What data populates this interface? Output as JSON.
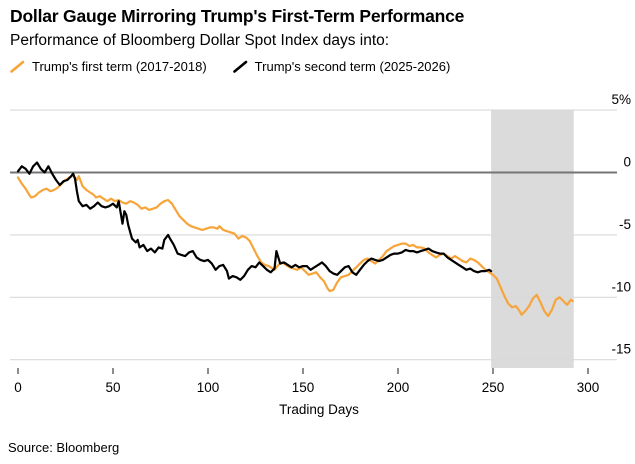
{
  "header": {
    "title": "Dollar Gauge Mirroring Trump's First-Term Performance",
    "subtitle": "Performance of Bloomberg Dollar Spot Index days into:"
  },
  "legend": {
    "items": [
      {
        "label": "Trump's first term (2017-2018)",
        "color": "#F7A43A"
      },
      {
        "label": "Trump's second term (2025-2026)",
        "color": "#000000"
      }
    ]
  },
  "footer": {
    "source": "Source: Bloomberg"
  },
  "colors": {
    "band": "#DBDBDB",
    "grid": "#D9D9D9",
    "zero_line": "#757575",
    "axis_tick": "#4d4d4d",
    "background": "#FFFFFF"
  },
  "chart_data": {
    "type": "line",
    "title": "Dollar Gauge Mirroring Trump's First-Term Performance",
    "subtitle": "Performance of Bloomberg Dollar Spot Index days into:",
    "xlabel": "Trading Days",
    "ylabel": "",
    "y_unit": "%",
    "xlim": [
      0,
      315
    ],
    "ylim": [
      -15,
      5
    ],
    "grid": true,
    "legend_position": "top-left",
    "x_ticks": [
      0,
      50,
      100,
      150,
      200,
      250,
      300
    ],
    "y_ticks": [
      {
        "value": 5,
        "label": "5%"
      },
      {
        "value": 0,
        "label": "0"
      },
      {
        "value": -5,
        "label": "-5"
      },
      {
        "value": -10,
        "label": "-10"
      },
      {
        "value": -15,
        "label": "-15"
      }
    ],
    "shaded_region": {
      "x0": 249,
      "x1": 292.5,
      "note": "highlight band over days ~249-292"
    },
    "series": [
      {
        "name": "Trump's first term (2017-2018)",
        "color": "#F7A43A",
        "points": [
          [
            0,
            -0.4
          ],
          [
            2,
            -0.9
          ],
          [
            4,
            -1.3
          ],
          [
            6,
            -1.8
          ],
          [
            7,
            -2.0
          ],
          [
            9,
            -1.9
          ],
          [
            11,
            -1.6
          ],
          [
            13,
            -1.4
          ],
          [
            15,
            -1.3
          ],
          [
            17,
            -1.5
          ],
          [
            19,
            -1.4
          ],
          [
            21,
            -1.2
          ],
          [
            23,
            -0.9
          ],
          [
            25,
            -0.6
          ],
          [
            27,
            -0.4
          ],
          [
            29,
            -0.2
          ],
          [
            31,
            -0.6
          ],
          [
            32,
            -0.3
          ],
          [
            34,
            -1.1
          ],
          [
            36,
            -1.4
          ],
          [
            38,
            -1.6
          ],
          [
            40,
            -1.8
          ],
          [
            41,
            -2.0
          ],
          [
            43,
            -1.9
          ],
          [
            45,
            -2.1
          ],
          [
            47,
            -2.3
          ],
          [
            49,
            -2.1
          ],
          [
            51,
            -2.3
          ],
          [
            53,
            -2.2
          ],
          [
            55,
            -2.4
          ],
          [
            57,
            -2.5
          ],
          [
            59,
            -2.3
          ],
          [
            61,
            -2.4
          ],
          [
            63,
            -2.6
          ],
          [
            65,
            -2.9
          ],
          [
            67,
            -2.8
          ],
          [
            69,
            -3.0
          ],
          [
            71,
            -2.9
          ],
          [
            73,
            -2.8
          ],
          [
            75,
            -2.5
          ],
          [
            77,
            -2.3
          ],
          [
            79,
            -2.2
          ],
          [
            81,
            -2.5
          ],
          [
            83,
            -3.0
          ],
          [
            85,
            -3.5
          ],
          [
            87,
            -3.8
          ],
          [
            89,
            -4.1
          ],
          [
            91,
            -4.3
          ],
          [
            93,
            -4.4
          ],
          [
            95,
            -4.5
          ],
          [
            97,
            -4.6
          ],
          [
            99,
            -4.5
          ],
          [
            101,
            -4.4
          ],
          [
            103,
            -4.4
          ],
          [
            105,
            -4.5
          ],
          [
            106,
            -4.3
          ],
          [
            108,
            -4.6
          ],
          [
            110,
            -4.7
          ],
          [
            112,
            -4.8
          ],
          [
            114,
            -4.9
          ],
          [
            116,
            -5.3
          ],
          [
            118,
            -5.1
          ],
          [
            120,
            -5.2
          ],
          [
            122,
            -5.5
          ],
          [
            124,
            -6.1
          ],
          [
            126,
            -6.7
          ],
          [
            128,
            -7.2
          ],
          [
            130,
            -7.4
          ],
          [
            132,
            -7.5
          ],
          [
            134,
            -7.7
          ],
          [
            135,
            -7.8
          ],
          [
            137,
            -7.4
          ],
          [
            139,
            -7.2
          ],
          [
            141,
            -7.4
          ],
          [
            143,
            -7.6
          ],
          [
            145,
            -7.7
          ],
          [
            147,
            -7.8
          ],
          [
            149,
            -7.6
          ],
          [
            151,
            -7.9
          ],
          [
            153,
            -8.2
          ],
          [
            155,
            -8.1
          ],
          [
            157,
            -8.0
          ],
          [
            159,
            -8.4
          ],
          [
            161,
            -8.7
          ],
          [
            163,
            -9.3
          ],
          [
            164,
            -9.5
          ],
          [
            166,
            -9.4
          ],
          [
            168,
            -8.8
          ],
          [
            170,
            -8.4
          ],
          [
            172,
            -8.3
          ],
          [
            174,
            -8.2
          ],
          [
            176,
            -7.9
          ],
          [
            178,
            -7.6
          ],
          [
            180,
            -7.3
          ],
          [
            182,
            -7.0
          ],
          [
            184,
            -6.9
          ],
          [
            186,
            -7.1
          ],
          [
            188,
            -7.3
          ],
          [
            190,
            -7.0
          ],
          [
            192,
            -6.7
          ],
          [
            194,
            -6.3
          ],
          [
            196,
            -6.1
          ],
          [
            198,
            -5.9
          ],
          [
            200,
            -5.8
          ],
          [
            202,
            -5.7
          ],
          [
            204,
            -5.7
          ],
          [
            206,
            -5.9
          ],
          [
            208,
            -5.8
          ],
          [
            210,
            -6.0
          ],
          [
            212,
            -6.0
          ],
          [
            214,
            -6.1
          ],
          [
            216,
            -6.4
          ],
          [
            218,
            -6.6
          ],
          [
            220,
            -6.8
          ],
          [
            222,
            -6.6
          ],
          [
            224,
            -6.5
          ],
          [
            226,
            -6.7
          ],
          [
            228,
            -6.9
          ],
          [
            230,
            -6.7
          ],
          [
            232,
            -6.9
          ],
          [
            234,
            -7.1
          ],
          [
            236,
            -7.2
          ],
          [
            238,
            -6.9
          ],
          [
            240,
            -7.0
          ],
          [
            242,
            -7.2
          ],
          [
            244,
            -7.5
          ],
          [
            246,
            -7.8
          ],
          [
            248,
            -8.0
          ],
          [
            250,
            -8.2
          ],
          [
            252,
            -8.5
          ],
          [
            254,
            -9.2
          ],
          [
            256,
            -9.9
          ],
          [
            258,
            -10.5
          ],
          [
            260,
            -10.8
          ],
          [
            262,
            -10.7
          ],
          [
            264,
            -11.1
          ],
          [
            265,
            -11.4
          ],
          [
            267,
            -11.1
          ],
          [
            269,
            -10.7
          ],
          [
            271,
            -10.1
          ],
          [
            273,
            -9.8
          ],
          [
            275,
            -10.4
          ],
          [
            277,
            -11.1
          ],
          [
            279,
            -11.5
          ],
          [
            281,
            -11.0
          ],
          [
            283,
            -10.2
          ],
          [
            285,
            -10.0
          ],
          [
            287,
            -10.3
          ],
          [
            289,
            -10.6
          ],
          [
            291,
            -10.2
          ],
          [
            292,
            -10.3
          ]
        ]
      },
      {
        "name": "Trump's second term (2025-2026)",
        "color": "#000000",
        "points": [
          [
            0,
            0.1
          ],
          [
            2,
            0.5
          ],
          [
            4,
            0.3
          ],
          [
            6,
            -0.1
          ],
          [
            8,
            0.5
          ],
          [
            10,
            0.8
          ],
          [
            12,
            0.3
          ],
          [
            14,
            0.0
          ],
          [
            16,
            0.5
          ],
          [
            18,
            -0.1
          ],
          [
            20,
            -0.6
          ],
          [
            22,
            -1.0
          ],
          [
            24,
            -0.7
          ],
          [
            26,
            -0.6
          ],
          [
            28,
            -0.3
          ],
          [
            29,
            -0.1
          ],
          [
            30,
            -0.5
          ],
          [
            31,
            -1.5
          ],
          [
            32,
            -2.3
          ],
          [
            34,
            -2.7
          ],
          [
            36,
            -2.6
          ],
          [
            38,
            -2.9
          ],
          [
            40,
            -2.7
          ],
          [
            42,
            -2.4
          ],
          [
            44,
            -2.7
          ],
          [
            46,
            -2.8
          ],
          [
            48,
            -2.7
          ],
          [
            50,
            -2.5
          ],
          [
            52,
            -2.8
          ],
          [
            53,
            -2.3
          ],
          [
            54,
            -3.2
          ],
          [
            55,
            -4.1
          ],
          [
            56,
            -3.1
          ],
          [
            57,
            -3.4
          ],
          [
            58,
            -4.2
          ],
          [
            60,
            -5.3
          ],
          [
            62,
            -5.6
          ],
          [
            63,
            -5.4
          ],
          [
            64,
            -6.0
          ],
          [
            66,
            -5.8
          ],
          [
            68,
            -6.3
          ],
          [
            70,
            -6.1
          ],
          [
            72,
            -6.4
          ],
          [
            74,
            -6.0
          ],
          [
            76,
            -6.1
          ],
          [
            77,
            -5.4
          ],
          [
            79,
            -5.0
          ],
          [
            80,
            -5.3
          ],
          [
            82,
            -5.8
          ],
          [
            84,
            -6.5
          ],
          [
            86,
            -6.6
          ],
          [
            88,
            -6.7
          ],
          [
            90,
            -6.4
          ],
          [
            92,
            -6.3
          ],
          [
            94,
            -6.8
          ],
          [
            96,
            -7.0
          ],
          [
            98,
            -7.1
          ],
          [
            100,
            -7.0
          ],
          [
            102,
            -7.3
          ],
          [
            104,
            -7.8
          ],
          [
            106,
            -7.5
          ],
          [
            108,
            -7.4
          ],
          [
            110,
            -7.9
          ],
          [
            111,
            -8.5
          ],
          [
            113,
            -8.3
          ],
          [
            115,
            -8.4
          ],
          [
            117,
            -8.6
          ],
          [
            119,
            -8.3
          ],
          [
            121,
            -7.8
          ],
          [
            123,
            -7.5
          ],
          [
            125,
            -7.6
          ],
          [
            127,
            -7.2
          ],
          [
            129,
            -7.5
          ],
          [
            131,
            -7.8
          ],
          [
            133,
            -8.0
          ],
          [
            135,
            -7.7
          ],
          [
            136,
            -6.3
          ],
          [
            138,
            -7.3
          ],
          [
            140,
            -7.2
          ],
          [
            142,
            -7.4
          ],
          [
            144,
            -7.6
          ],
          [
            146,
            -7.4
          ],
          [
            148,
            -7.6
          ],
          [
            150,
            -7.5
          ],
          [
            152,
            -7.5
          ],
          [
            154,
            -7.8
          ],
          [
            156,
            -7.6
          ],
          [
            158,
            -7.4
          ],
          [
            160,
            -7.2
          ],
          [
            162,
            -7.5
          ],
          [
            164,
            -7.9
          ],
          [
            166,
            -8.1
          ],
          [
            168,
            -8.2
          ],
          [
            170,
            -7.9
          ],
          [
            172,
            -7.6
          ],
          [
            174,
            -7.5
          ],
          [
            176,
            -8.0
          ],
          [
            178,
            -8.2
          ],
          [
            180,
            -7.8
          ],
          [
            182,
            -7.4
          ],
          [
            184,
            -7.1
          ],
          [
            186,
            -6.9
          ],
          [
            188,
            -7.0
          ],
          [
            190,
            -7.1
          ],
          [
            192,
            -7.0
          ],
          [
            194,
            -6.8
          ],
          [
            196,
            -6.6
          ],
          [
            198,
            -6.5
          ],
          [
            200,
            -6.5
          ],
          [
            202,
            -6.4
          ],
          [
            204,
            -6.2
          ],
          [
            206,
            -6.3
          ],
          [
            208,
            -6.3
          ],
          [
            210,
            -6.4
          ],
          [
            212,
            -6.3
          ],
          [
            214,
            -6.2
          ],
          [
            216,
            -6.1
          ],
          [
            218,
            -6.3
          ],
          [
            220,
            -6.4
          ],
          [
            222,
            -6.5
          ],
          [
            224,
            -6.5
          ],
          [
            226,
            -6.8
          ],
          [
            228,
            -7.0
          ],
          [
            230,
            -7.2
          ],
          [
            232,
            -7.4
          ],
          [
            234,
            -7.6
          ],
          [
            236,
            -7.8
          ],
          [
            238,
            -7.7
          ],
          [
            240,
            -7.9
          ],
          [
            242,
            -8.0
          ],
          [
            244,
            -7.9
          ],
          [
            246,
            -7.9
          ],
          [
            248,
            -7.8
          ],
          [
            249,
            -7.9
          ]
        ]
      }
    ]
  }
}
